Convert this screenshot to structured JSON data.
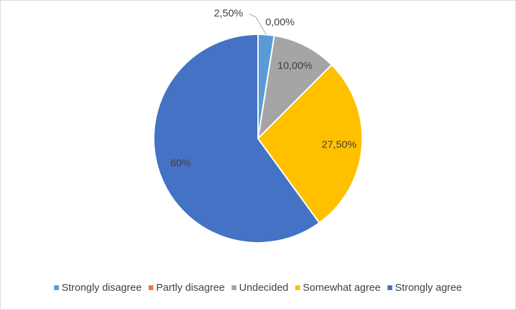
{
  "chart_data": {
    "type": "pie",
    "categories": [
      "Strongly disagree",
      "Partly disagree",
      "Undecided",
      "Somewhat agree",
      "Strongly agree"
    ],
    "values": [
      2.5,
      0,
      10,
      27.5,
      60
    ],
    "value_labels": [
      "2,50%",
      "0,00%",
      "10,00%",
      "27,50%",
      "60%"
    ],
    "colors": [
      "#5b9bd5",
      "#ed7d31",
      "#a5a5a5",
      "#ffc000",
      "#4472c4"
    ],
    "legend": "bottom"
  }
}
